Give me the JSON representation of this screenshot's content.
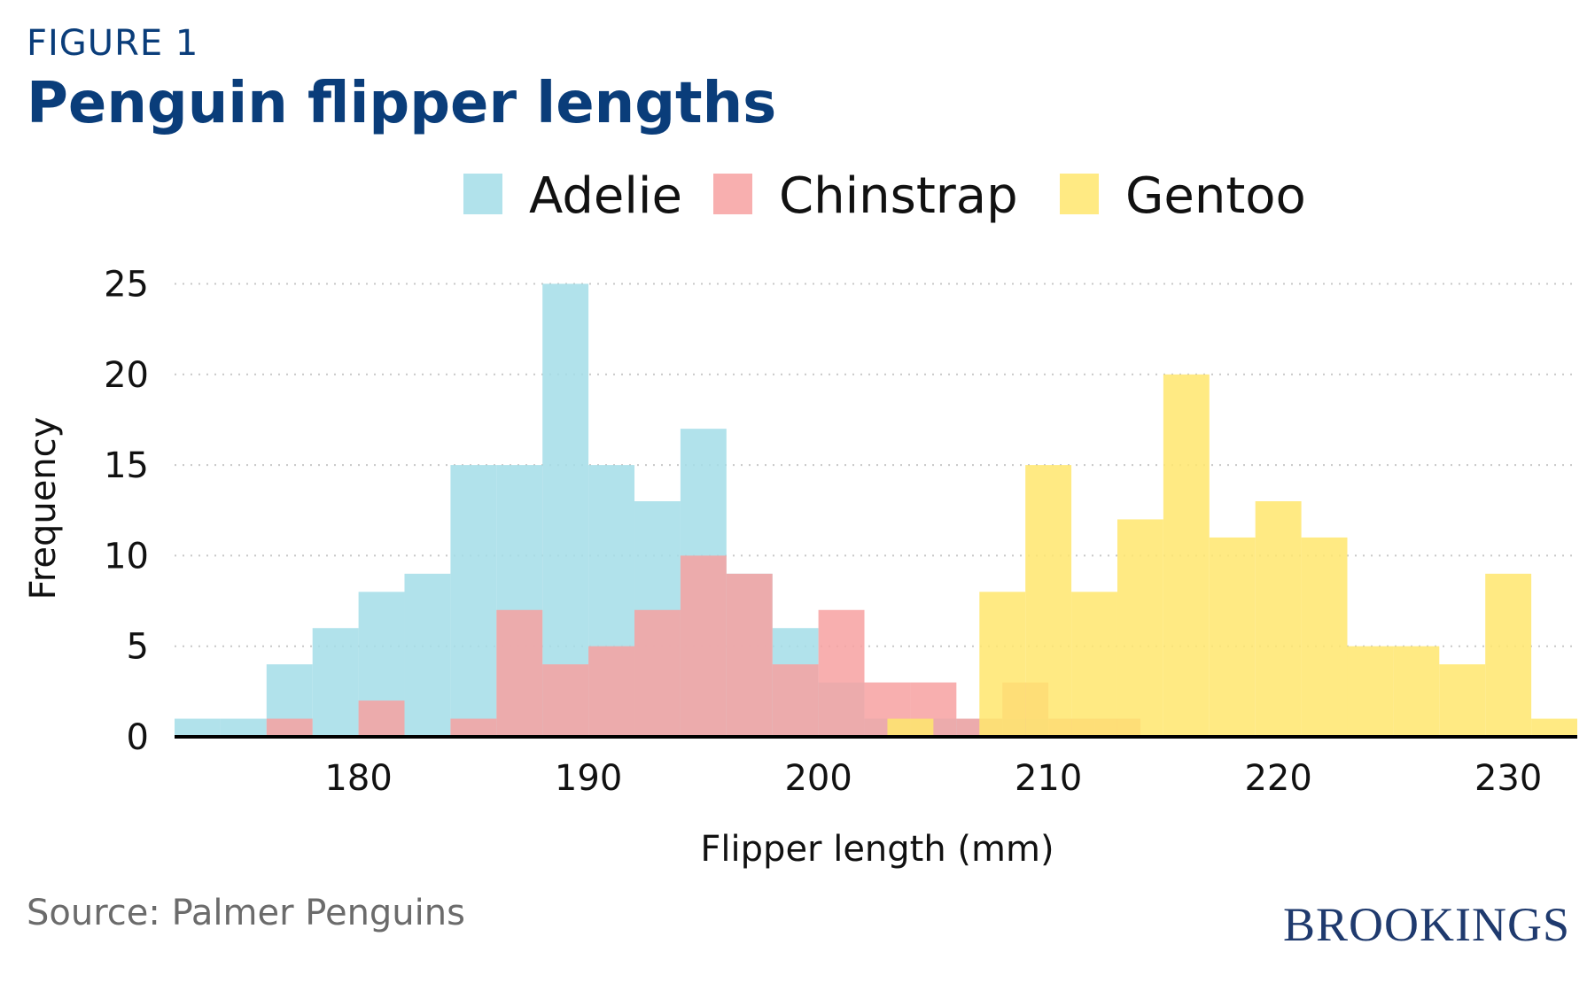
{
  "header": {
    "figure_label": "FIGURE 1",
    "title": "Penguin flipper lengths"
  },
  "footer": {
    "source": "Source: Palmer Penguins",
    "brand": "BROOKINGS"
  },
  "colors": {
    "title": "#0a3d7a",
    "Adelie": "#a3dde8",
    "Chinstrap": "#f7a1a1",
    "Gentoo": "#ffe66d",
    "brand": "#1f3a6e"
  },
  "chart_data": {
    "type": "bar",
    "subtype": "overlapping histogram",
    "xlabel": "Flipper length (mm)",
    "ylabel": "Frequency",
    "xlim": [
      172,
      233
    ],
    "ylim": [
      0,
      26
    ],
    "bin_width": 2,
    "x_ticks": [
      "180",
      "190",
      "200",
      "210",
      "220",
      "230"
    ],
    "y_ticks": [
      "0",
      "5",
      "10",
      "15",
      "20",
      "25"
    ],
    "grid": "horizontal dotted",
    "legend_position": "top",
    "series": [
      {
        "name": "Adelie",
        "bins": [
          {
            "x0": 172,
            "x1": 174,
            "count": 1
          },
          {
            "x0": 174,
            "x1": 176,
            "count": 1
          },
          {
            "x0": 176,
            "x1": 178,
            "count": 4
          },
          {
            "x0": 178,
            "x1": 180,
            "count": 6
          },
          {
            "x0": 180,
            "x1": 182,
            "count": 8
          },
          {
            "x0": 182,
            "x1": 184,
            "count": 9
          },
          {
            "x0": 184,
            "x1": 186,
            "count": 15
          },
          {
            "x0": 186,
            "x1": 188,
            "count": 15
          },
          {
            "x0": 188,
            "x1": 190,
            "count": 25
          },
          {
            "x0": 190,
            "x1": 192,
            "count": 15
          },
          {
            "x0": 192,
            "x1": 194,
            "count": 13
          },
          {
            "x0": 194,
            "x1": 196,
            "count": 17
          },
          {
            "x0": 196,
            "x1": 198,
            "count": 9
          },
          {
            "x0": 198,
            "x1": 200,
            "count": 6
          },
          {
            "x0": 200,
            "x1": 202,
            "count": 3
          },
          {
            "x0": 202,
            "x1": 204,
            "count": 1
          },
          {
            "x0": 204,
            "x1": 206,
            "count": 1
          },
          {
            "x0": 206,
            "x1": 208,
            "count": 1
          },
          {
            "x0": 208,
            "x1": 210,
            "count": 1
          }
        ]
      },
      {
        "name": "Chinstrap",
        "bins": [
          {
            "x0": 176,
            "x1": 178,
            "count": 1
          },
          {
            "x0": 180,
            "x1": 182,
            "count": 2
          },
          {
            "x0": 184,
            "x1": 186,
            "count": 1
          },
          {
            "x0": 186,
            "x1": 188,
            "count": 7
          },
          {
            "x0": 188,
            "x1": 190,
            "count": 4
          },
          {
            "x0": 190,
            "x1": 192,
            "count": 5
          },
          {
            "x0": 192,
            "x1": 194,
            "count": 7
          },
          {
            "x0": 194,
            "x1": 196,
            "count": 10
          },
          {
            "x0": 196,
            "x1": 198,
            "count": 9
          },
          {
            "x0": 198,
            "x1": 200,
            "count": 4
          },
          {
            "x0": 200,
            "x1": 202,
            "count": 7
          },
          {
            "x0": 202,
            "x1": 204,
            "count": 3
          },
          {
            "x0": 204,
            "x1": 206,
            "count": 3
          },
          {
            "x0": 206,
            "x1": 208,
            "count": 1
          },
          {
            "x0": 208,
            "x1": 210,
            "count": 3
          },
          {
            "x0": 210,
            "x1": 212,
            "count": 1
          },
          {
            "x0": 212,
            "x1": 214,
            "count": 1
          }
        ]
      },
      {
        "name": "Gentoo",
        "bins": [
          {
            "x0": 203,
            "x1": 205,
            "count": 1
          },
          {
            "x0": 207,
            "x1": 209,
            "count": 8
          },
          {
            "x0": 209,
            "x1": 211,
            "count": 15
          },
          {
            "x0": 211,
            "x1": 213,
            "count": 8
          },
          {
            "x0": 213,
            "x1": 215,
            "count": 12
          },
          {
            "x0": 215,
            "x1": 217,
            "count": 20
          },
          {
            "x0": 217,
            "x1": 219,
            "count": 11
          },
          {
            "x0": 219,
            "x1": 221,
            "count": 13
          },
          {
            "x0": 221,
            "x1": 223,
            "count": 11
          },
          {
            "x0": 223,
            "x1": 225,
            "count": 5
          },
          {
            "x0": 225,
            "x1": 227,
            "count": 5
          },
          {
            "x0": 227,
            "x1": 229,
            "count": 4
          },
          {
            "x0": 229,
            "x1": 231,
            "count": 9
          },
          {
            "x0": 231,
            "x1": 233,
            "count": 1
          }
        ]
      }
    ]
  }
}
